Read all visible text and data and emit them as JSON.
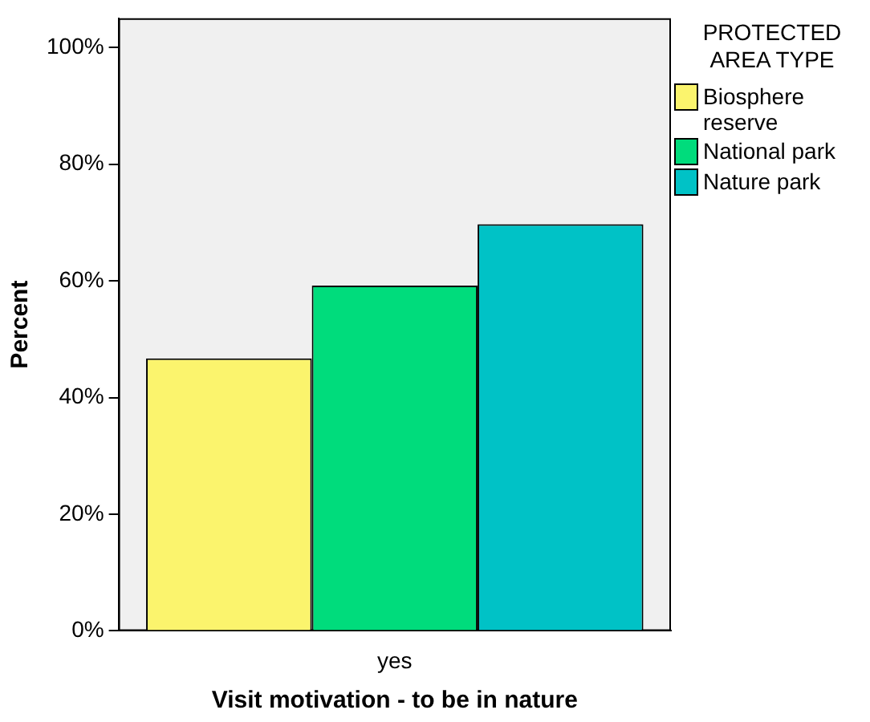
{
  "chart_data": {
    "type": "bar",
    "xlabel": "Visit motivation - to be in nature",
    "ylabel": "Percent",
    "legend_title": "PROTECTED AREA TYPE",
    "categories": [
      "yes"
    ],
    "series": [
      {
        "name": "Biosphere reserve",
        "color": "#fbf46d",
        "values": [
          46.7
        ]
      },
      {
        "name": "National park",
        "color": "#00dc7c",
        "values": [
          59.2
        ]
      },
      {
        "name": "Nature park",
        "color": "#00c2c6",
        "values": [
          69.7
        ]
      }
    ],
    "ylim": [
      0,
      105
    ],
    "yticks": [
      {
        "value": 0,
        "label": "0%"
      },
      {
        "value": 20,
        "label": "20%"
      },
      {
        "value": 40,
        "label": "40%"
      },
      {
        "value": 60,
        "label": "60%"
      },
      {
        "value": 80,
        "label": "80%"
      },
      {
        "value": 100,
        "label": "100%"
      }
    ],
    "grid": false,
    "legend": "right"
  }
}
